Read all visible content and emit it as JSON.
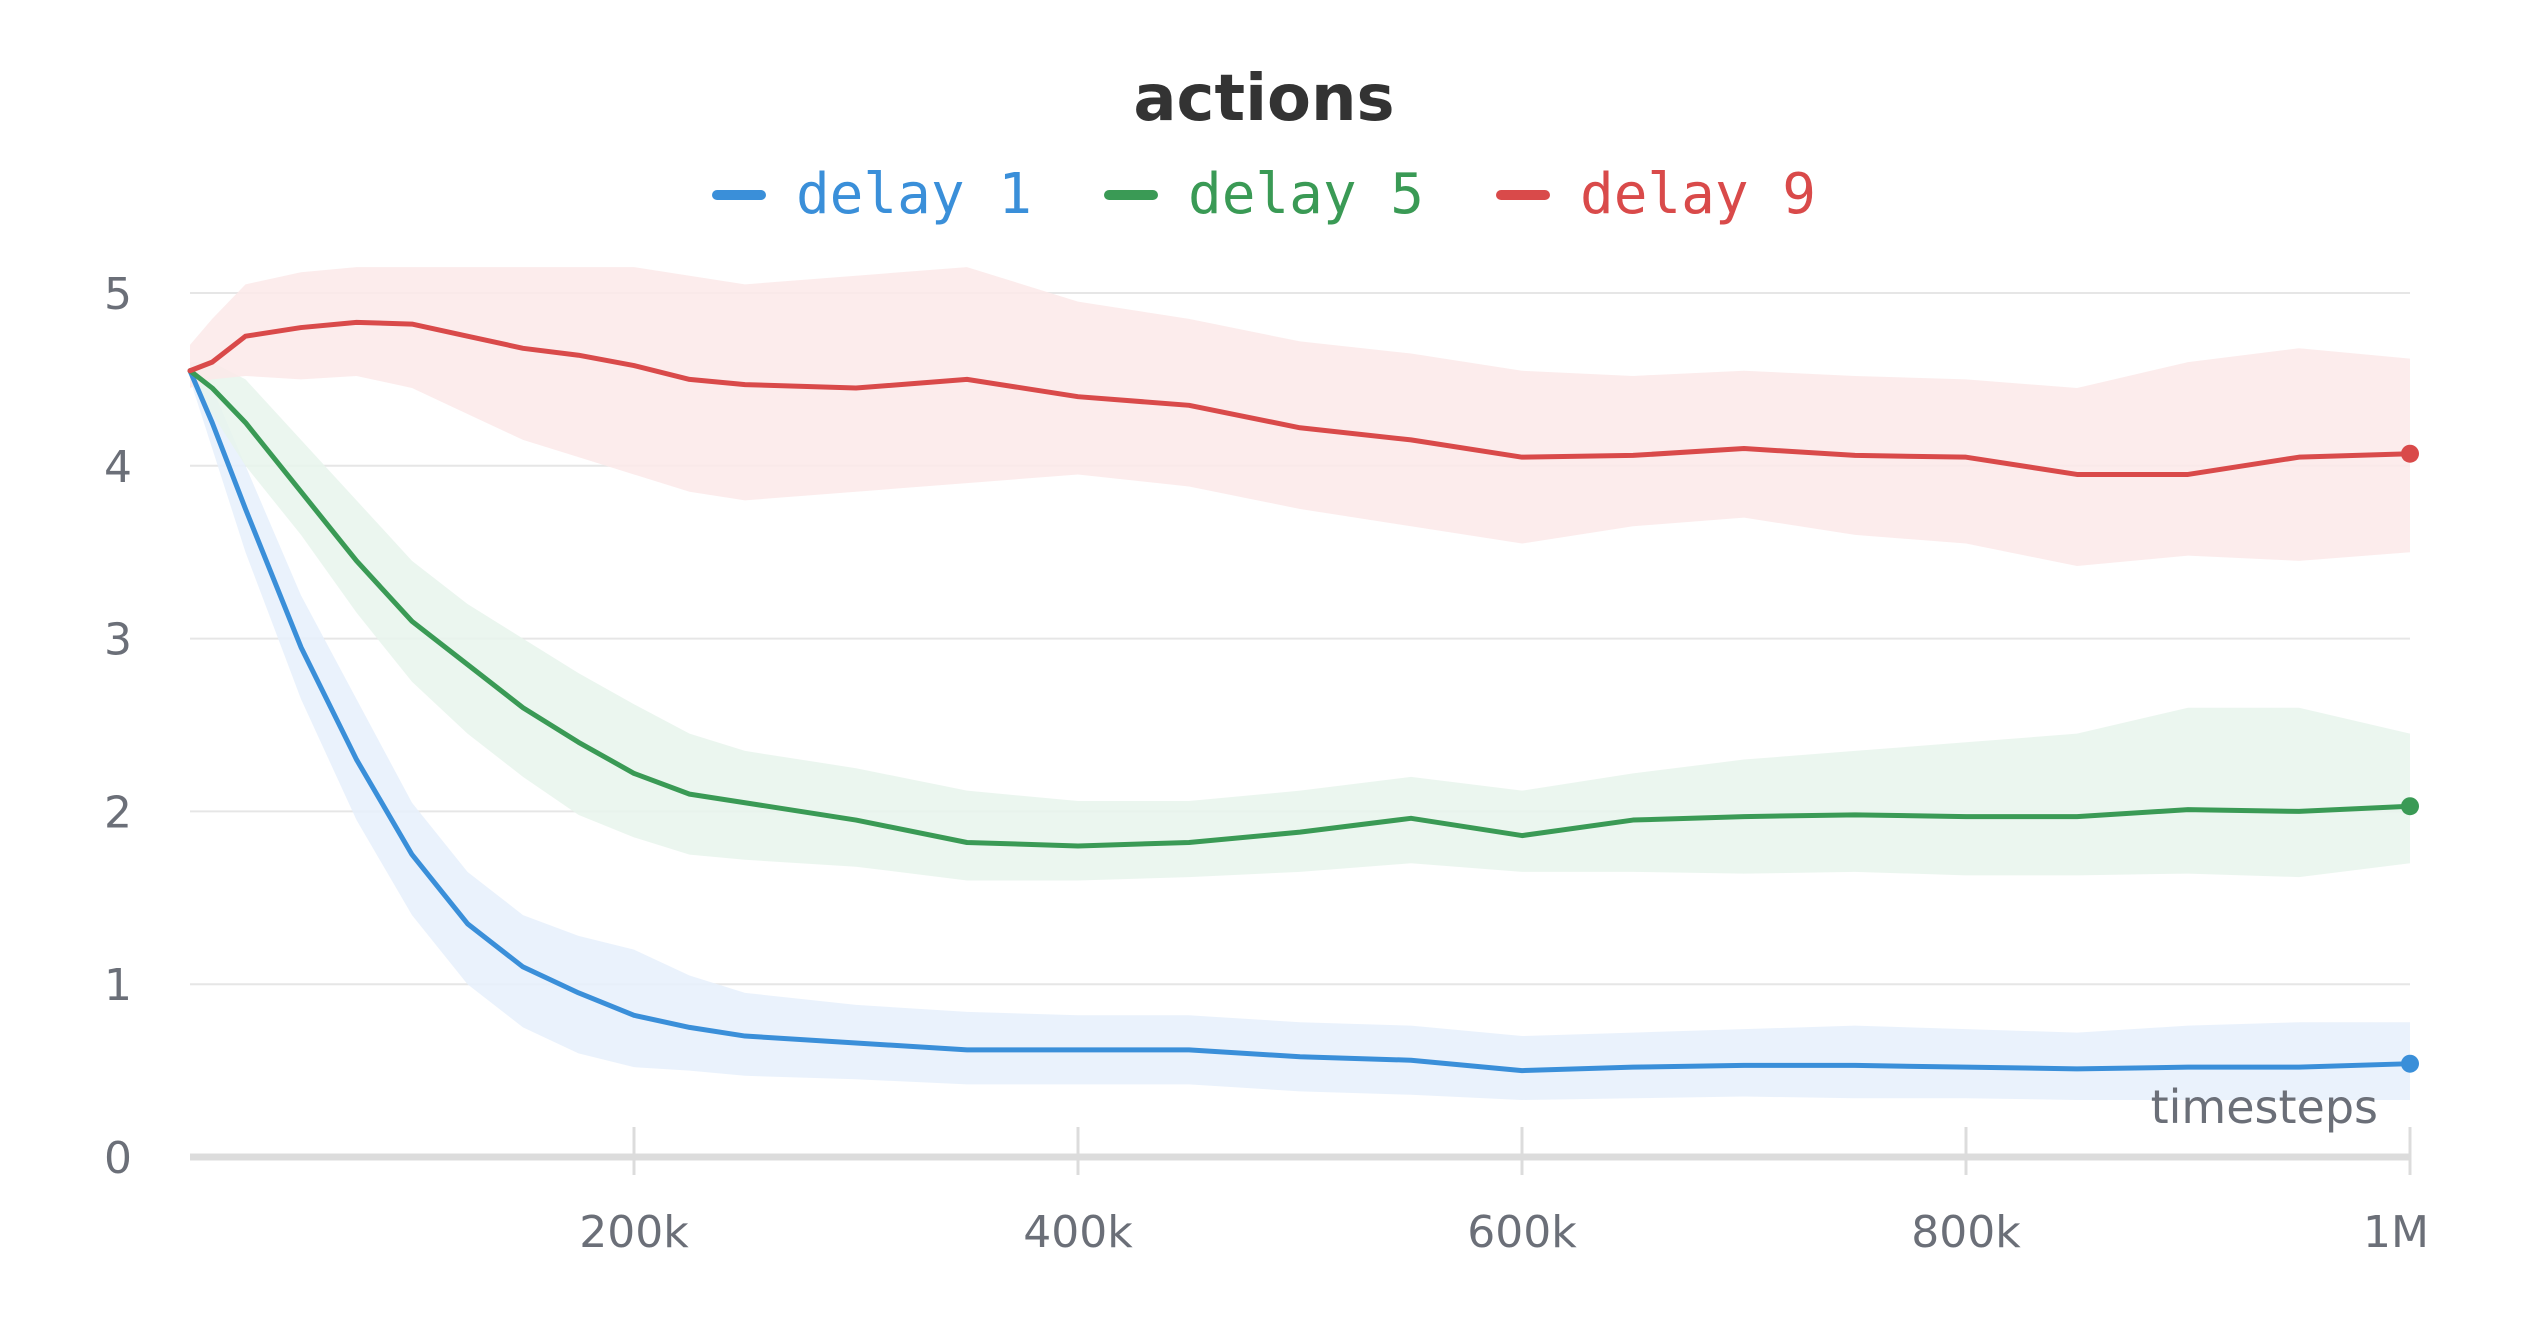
{
  "chart_data": {
    "type": "line",
    "title": "actions",
    "xlabel": "timesteps",
    "ylabel": "",
    "xlim": [
      0,
      1000000
    ],
    "ylim": [
      0,
      5
    ],
    "x_ticks": [
      200000,
      400000,
      600000,
      800000,
      1000000
    ],
    "x_tick_labels": [
      "200k",
      "400k",
      "600k",
      "800k",
      "1M"
    ],
    "y_ticks": [
      0,
      1,
      2,
      3,
      4,
      5
    ],
    "y_tick_labels": [
      "0",
      "1",
      "2",
      "3",
      "4",
      "5"
    ],
    "grid": "horizontal",
    "legend_position": "top-center",
    "x": [
      0,
      10000,
      25000,
      50000,
      75000,
      100000,
      125000,
      150000,
      175000,
      200000,
      225000,
      250000,
      300000,
      350000,
      400000,
      450000,
      500000,
      550000,
      600000,
      650000,
      700000,
      750000,
      800000,
      850000,
      900000,
      950000,
      1000000
    ],
    "series": [
      {
        "name": "delay 1",
        "color": "#3a8fd9",
        "band_color": "#e6f0fb",
        "values": [
          4.55,
          4.25,
          3.75,
          2.95,
          2.3,
          1.75,
          1.35,
          1.1,
          0.95,
          0.82,
          0.75,
          0.7,
          0.66,
          0.62,
          0.62,
          0.62,
          0.58,
          0.56,
          0.5,
          0.52,
          0.53,
          0.53,
          0.52,
          0.51,
          0.52,
          0.52,
          0.54
        ],
        "lower": [
          4.5,
          4.1,
          3.5,
          2.65,
          1.95,
          1.4,
          1.0,
          0.75,
          0.6,
          0.52,
          0.5,
          0.47,
          0.45,
          0.42,
          0.42,
          0.42,
          0.38,
          0.36,
          0.33,
          0.34,
          0.35,
          0.34,
          0.34,
          0.33,
          0.33,
          0.33,
          0.33
        ],
        "upper": [
          4.6,
          4.45,
          4.0,
          3.25,
          2.65,
          2.05,
          1.65,
          1.4,
          1.28,
          1.2,
          1.05,
          0.95,
          0.88,
          0.84,
          0.82,
          0.82,
          0.78,
          0.76,
          0.7,
          0.72,
          0.74,
          0.76,
          0.74,
          0.72,
          0.76,
          0.78,
          0.78
        ]
      },
      {
        "name": "delay 5",
        "color": "#3a9a55",
        "band_color": "#e8f4ec",
        "values": [
          4.55,
          4.45,
          4.25,
          3.85,
          3.45,
          3.1,
          2.85,
          2.6,
          2.4,
          2.22,
          2.1,
          2.05,
          1.95,
          1.82,
          1.8,
          1.82,
          1.88,
          1.96,
          1.86,
          1.95,
          1.97,
          1.98,
          1.97,
          1.97,
          2.01,
          2.0,
          2.03
        ],
        "lower": [
          4.5,
          4.3,
          4.0,
          3.6,
          3.15,
          2.75,
          2.45,
          2.2,
          1.98,
          1.85,
          1.75,
          1.72,
          1.68,
          1.6,
          1.6,
          1.62,
          1.65,
          1.7,
          1.65,
          1.65,
          1.64,
          1.65,
          1.63,
          1.63,
          1.64,
          1.62,
          1.7
        ],
        "upper": [
          4.6,
          4.6,
          4.5,
          4.15,
          3.8,
          3.45,
          3.2,
          3.0,
          2.8,
          2.62,
          2.45,
          2.35,
          2.25,
          2.12,
          2.06,
          2.06,
          2.12,
          2.2,
          2.12,
          2.22,
          2.3,
          2.35,
          2.4,
          2.45,
          2.6,
          2.6,
          2.45
        ]
      },
      {
        "name": "delay 9",
        "color": "#d94a4a",
        "band_color": "#fbe9e9",
        "values": [
          4.55,
          4.6,
          4.75,
          4.8,
          4.83,
          4.82,
          4.75,
          4.68,
          4.64,
          4.58,
          4.5,
          4.47,
          4.45,
          4.5,
          4.4,
          4.35,
          4.22,
          4.15,
          4.05,
          4.06,
          4.1,
          4.06,
          4.05,
          3.95,
          3.95,
          4.05,
          4.07
        ],
        "lower": [
          4.45,
          4.5,
          4.52,
          4.5,
          4.52,
          4.45,
          4.3,
          4.15,
          4.05,
          3.95,
          3.85,
          3.8,
          3.85,
          3.9,
          3.95,
          3.88,
          3.75,
          3.65,
          3.55,
          3.65,
          3.7,
          3.6,
          3.55,
          3.42,
          3.48,
          3.45,
          3.5
        ],
        "upper": [
          4.7,
          4.85,
          5.05,
          5.12,
          5.15,
          5.15,
          5.15,
          5.15,
          5.15,
          5.15,
          5.1,
          5.05,
          5.1,
          5.15,
          4.95,
          4.85,
          4.72,
          4.65,
          4.55,
          4.52,
          4.55,
          4.52,
          4.5,
          4.45,
          4.6,
          4.68,
          4.62
        ]
      }
    ]
  }
}
